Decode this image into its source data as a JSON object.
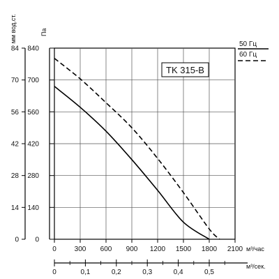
{
  "chart_data": {
    "type": "line",
    "model_label": "TK 315-B",
    "y_left_outer_label": "мм вод.ст.",
    "y_left_inner_label": "Па",
    "y_outer_ticks": [
      "0",
      "14",
      "28",
      "42",
      "56",
      "70",
      "84"
    ],
    "y_inner_ticks": [
      "0",
      "140",
      "280",
      "420",
      "560",
      "700",
      "840"
    ],
    "x_ticks": [
      "0",
      "300",
      "600",
      "900",
      "1200",
      "1500",
      "1800",
      "2100"
    ],
    "x_unit": "м³/час",
    "x2_ticks": [
      "0",
      "0,1",
      "0,2",
      "0,3",
      "0,4",
      "0,5"
    ],
    "x2_tick_values": [
      0,
      0.1,
      0.2,
      0.3,
      0.4,
      0.5
    ],
    "x2_unit": "м³/сек.",
    "xlim": [
      0,
      2100
    ],
    "ylim": [
      0,
      840
    ],
    "grid": true,
    "legend_placement": "right",
    "series": [
      {
        "name": "50 Гц",
        "style": "solid",
        "x": [
          0,
          300,
          600,
          900,
          1200,
          1500,
          1800
        ],
        "y": [
          672,
          580,
          475,
          350,
          215,
          75,
          0
        ]
      },
      {
        "name": "60 Гц",
        "style": "dashed",
        "x": [
          0,
          300,
          600,
          900,
          1200,
          1500,
          1800,
          1920
        ],
        "y": [
          795,
          705,
          600,
          490,
          355,
          205,
          45,
          0
        ]
      }
    ]
  }
}
